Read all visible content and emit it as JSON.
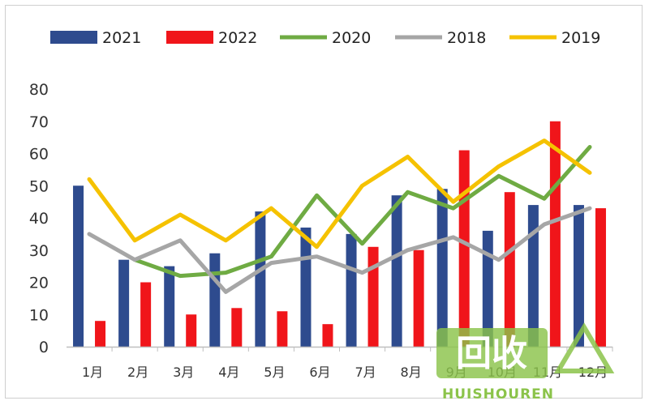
{
  "chart_data": {
    "type": "bar+line",
    "categories": [
      "1月",
      "2月",
      "3月",
      "4月",
      "5月",
      "6月",
      "7月",
      "8月",
      "9月",
      "10月",
      "11月",
      "12月"
    ],
    "ylim": [
      0,
      80
    ],
    "yticks": [
      0,
      10,
      20,
      30,
      40,
      50,
      60,
      70,
      80
    ],
    "grid": false,
    "legend_position": "top",
    "series": [
      {
        "name": "2021",
        "kind": "bar",
        "color": "#2E4B8E",
        "values": [
          50,
          27,
          25,
          29,
          42,
          37,
          35,
          47,
          49,
          36,
          44,
          44
        ]
      },
      {
        "name": "2022",
        "kind": "bar",
        "color": "#F0151A",
        "values": [
          8,
          20,
          10,
          12,
          11,
          7,
          31,
          30,
          61,
          48,
          70,
          43
        ]
      },
      {
        "name": "2020",
        "kind": "line",
        "color": "#6FAB43",
        "values": [
          null,
          27,
          22,
          23,
          28,
          47,
          32,
          48,
          43,
          53,
          46,
          62
        ]
      },
      {
        "name": "2018",
        "kind": "line",
        "color": "#A6A6A6",
        "values": [
          35,
          27,
          33,
          17,
          26,
          28,
          23,
          30,
          34,
          27,
          38,
          43
        ]
      },
      {
        "name": "2019",
        "kind": "line",
        "color": "#F5C200",
        "values": [
          52,
          33,
          41,
          33,
          43,
          31,
          50,
          59,
          45,
          56,
          64,
          54
        ]
      }
    ],
    "legend_order": [
      "2021",
      "2022",
      "2020",
      "2018",
      "2019"
    ]
  },
  "watermark": {
    "text": "回收",
    "subtext": "HUISHOUREN",
    "color": "#8BC34A"
  }
}
